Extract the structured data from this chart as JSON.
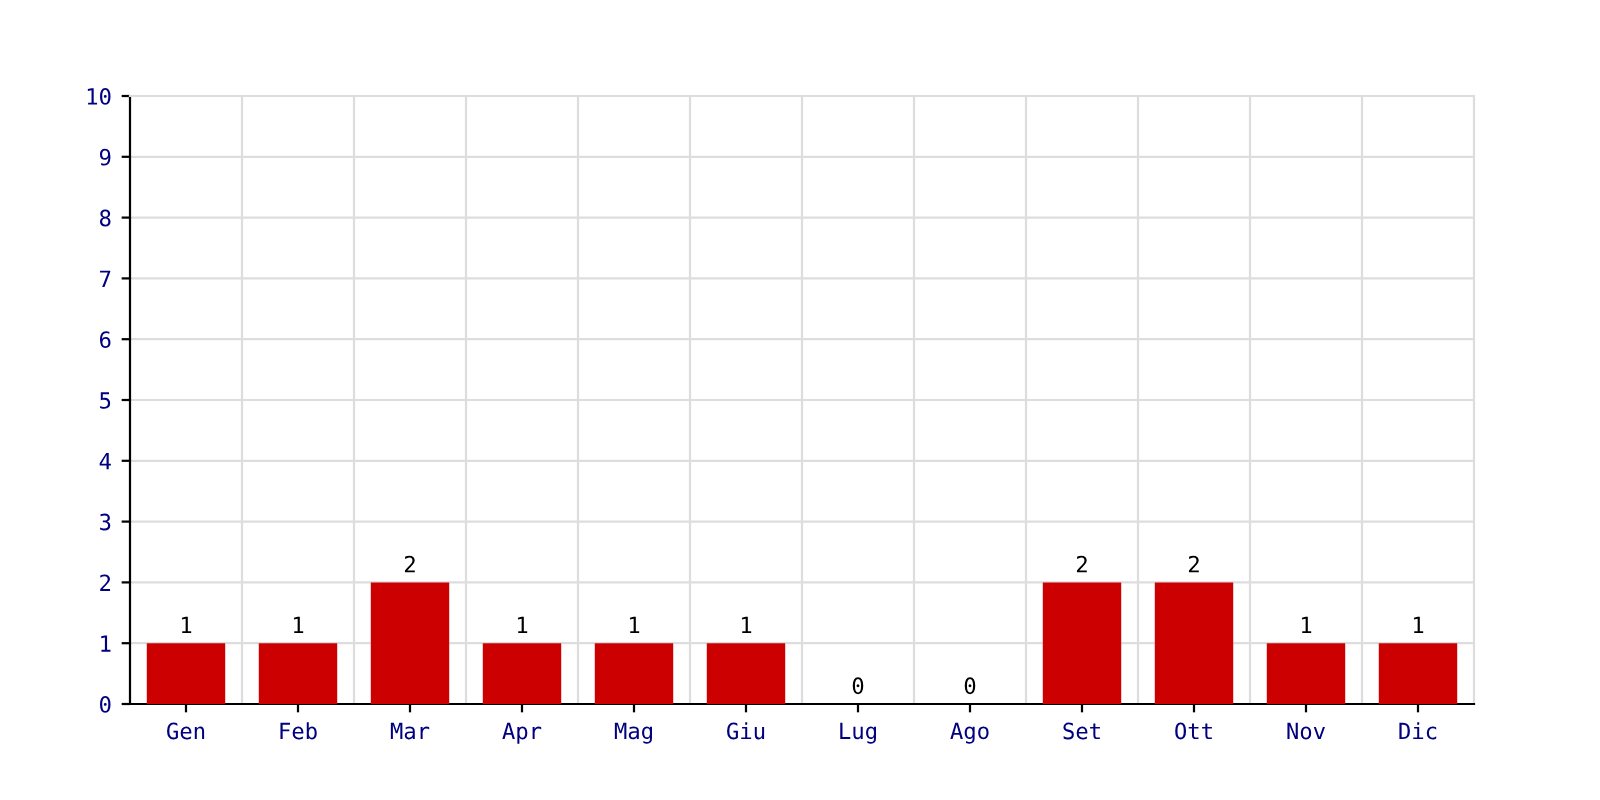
{
  "chart_data": {
    "type": "bar",
    "categories": [
      "Gen",
      "Feb",
      "Mar",
      "Apr",
      "Mag",
      "Giu",
      "Lug",
      "Ago",
      "Set",
      "Ott",
      "Nov",
      "Dic"
    ],
    "values": [
      1,
      1,
      2,
      1,
      1,
      1,
      0,
      0,
      2,
      2,
      1,
      1
    ],
    "color": "#cc0000",
    "ylim": [
      0,
      10
    ],
    "yticks": [
      0,
      1,
      2,
      3,
      4,
      5,
      6,
      7,
      8,
      9,
      10
    ],
    "grid": true,
    "data_labels": true
  }
}
